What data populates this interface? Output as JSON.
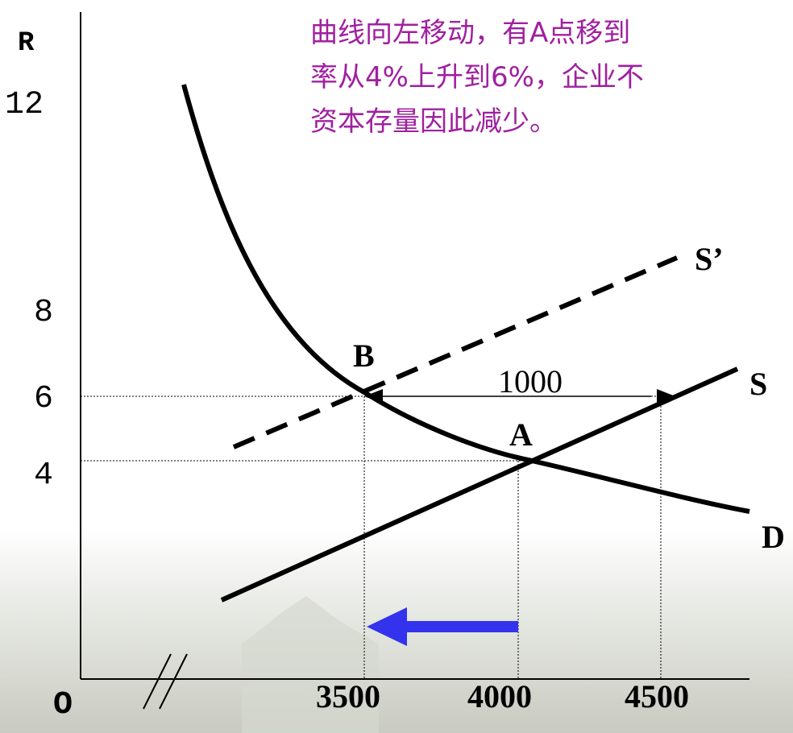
{
  "caption": {
    "lines": [
      "曲线向左移动，有A点移到",
      "率从4%上升到6%，企业不",
      "资本存量因此减少。"
    ]
  },
  "axes": {
    "y_label": "R",
    "origin": "O",
    "y_ticks": [
      "12",
      "8",
      "6",
      "4"
    ],
    "x_ticks": [
      "3500",
      "4000",
      "4500"
    ]
  },
  "curves": {
    "supply_new": "S’",
    "supply": "S",
    "demand": "D"
  },
  "points": {
    "a": "A",
    "b": "B"
  },
  "gap_label": "1000"
}
